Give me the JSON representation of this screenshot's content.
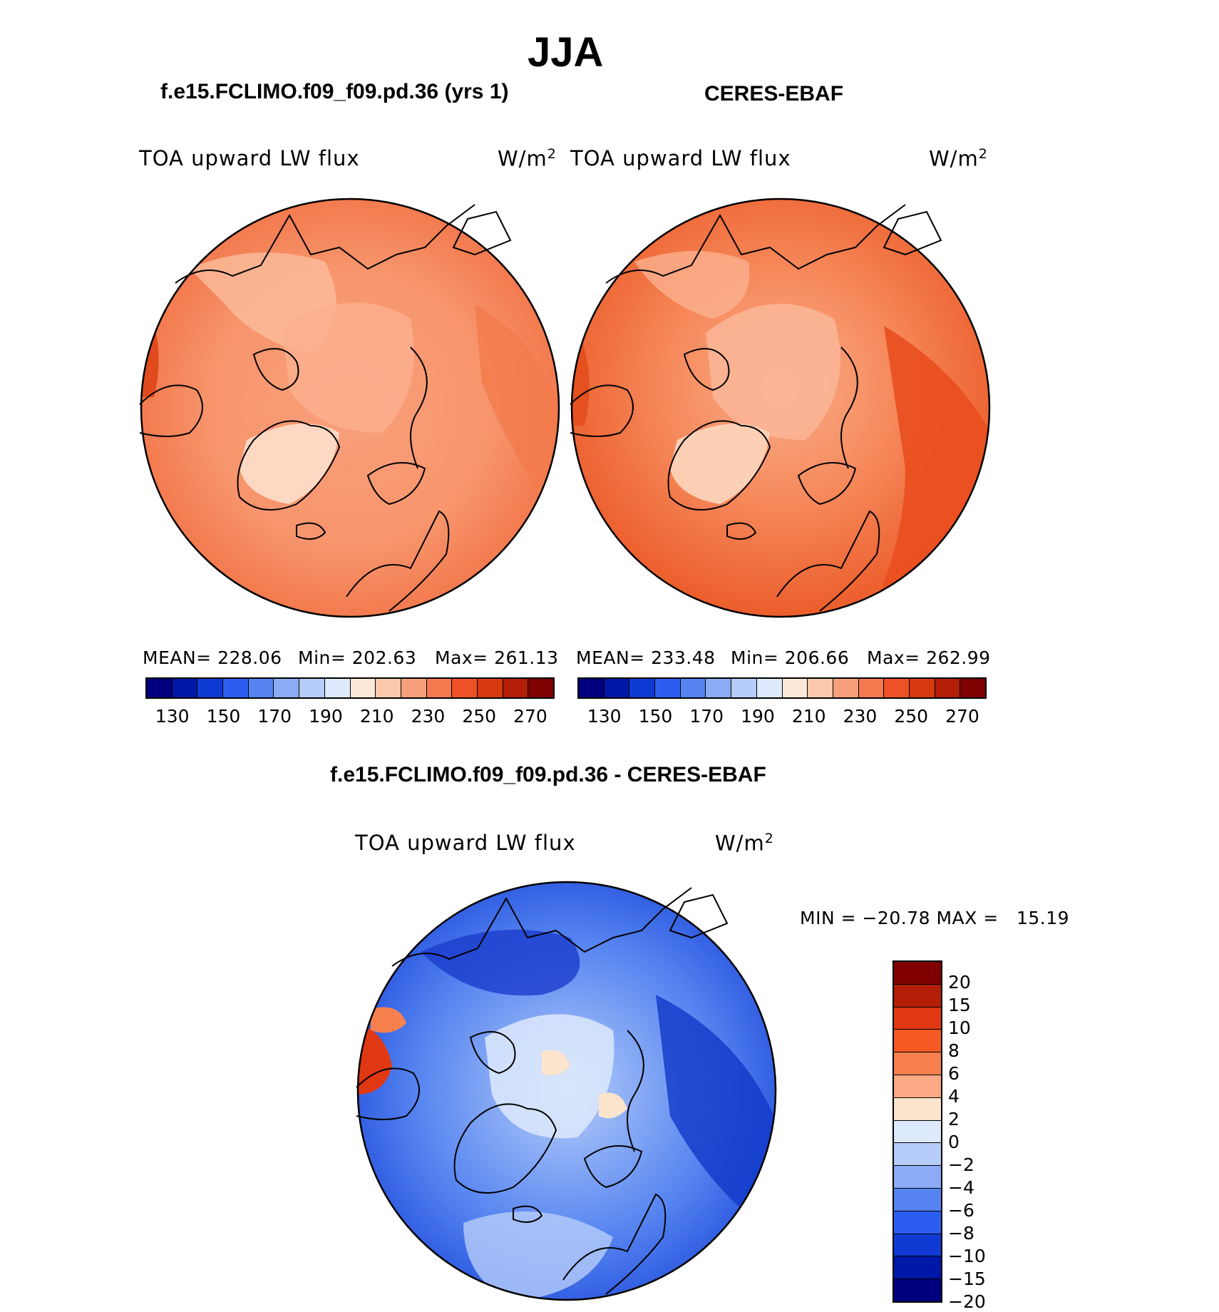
{
  "season": "JJA",
  "left_panel": {
    "case_title": "f.e15.FCLIMO.f09_f09.pd.36 (yrs 1)",
    "variable": "TOA upward LW flux",
    "units": "W/m",
    "units_sup": "2",
    "stats": {
      "mean_label": "MEAN=",
      "mean": "228.06",
      "min_label": "Min=",
      "min": "202.63",
      "max_label": "Max=",
      "max": "261.13"
    }
  },
  "right_panel": {
    "case_title": "CERES-EBAF",
    "variable": "TOA upward LW flux",
    "units": "W/m",
    "units_sup": "2",
    "stats": {
      "mean_label": "MEAN=",
      "mean": "233.48",
      "min_label": "Min=",
      "min": "206.66",
      "max_label": "Max=",
      "max": "262.99"
    }
  },
  "abs_colorbar": {
    "ticks": [
      "130",
      "150",
      "170",
      "190",
      "210",
      "230",
      "250",
      "270"
    ],
    "colors": [
      "#00007e",
      "#0018a8",
      "#0f3bd4",
      "#2b5ef0",
      "#5584f0",
      "#8bacf5",
      "#b6cdfa",
      "#dde9fc",
      "#fde8d8",
      "#fbc9ad",
      "#f8a07c",
      "#f47a50",
      "#ec5225",
      "#d63a0e",
      "#b21e06",
      "#800000"
    ]
  },
  "diff_panel": {
    "title": "f.e15.FCLIMO.f09_f09.pd.36 - CERES-EBAF",
    "variable": "TOA upward LW flux",
    "units": "W/m",
    "units_sup": "2",
    "minmax": "MIN = −20.78 MAX =   15.19"
  },
  "diff_colorbar": {
    "ticks": [
      "20",
      "15",
      "10",
      "8",
      "6",
      "4",
      "2",
      "0",
      "−2",
      "−4",
      "−6",
      "−8",
      "−10",
      "−15",
      "−20"
    ],
    "colors": [
      "#800000",
      "#b21e06",
      "#e03812",
      "#f55a25",
      "#f8804f",
      "#fbaa85",
      "#fde4cc",
      "#dde9fc",
      "#b6cdfa",
      "#8bacf5",
      "#5584f0",
      "#2b5ef0",
      "#0f3bd4",
      "#0018a8",
      "#00007e"
    ]
  },
  "colors": {
    "land_outline": "#000000"
  }
}
